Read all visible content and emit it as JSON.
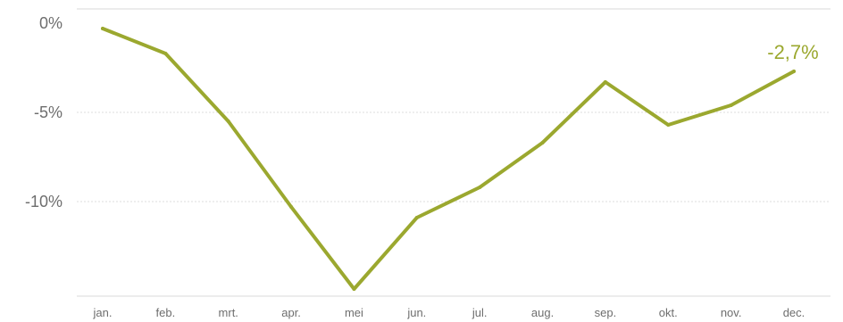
{
  "chart_data": {
    "type": "line",
    "categories": [
      "jan.",
      "feb.",
      "mrt.",
      "apr.",
      "mei",
      "jun.",
      "jul.",
      "aug.",
      "sep.",
      "okt.",
      "nov.",
      "dec."
    ],
    "series": [
      {
        "values": [
          -0.3,
          -1.7,
          -5.5,
          -10.3,
          -14.9,
          -10.9,
          -9.2,
          -6.7,
          -3.3,
          -5.7,
          -4.6,
          -2.7
        ]
      }
    ],
    "y_ticks": [
      {
        "value": 0,
        "label": "0%"
      },
      {
        "value": -5,
        "label": "-5%"
      },
      {
        "value": -10,
        "label": "-10%"
      }
    ],
    "ylim": [
      -15.3,
      0.8
    ],
    "end_label": "-2,7%",
    "line_color": "#9ba82f",
    "label_color": "#9ba82f",
    "grid": true,
    "title": "",
    "xlabel": "",
    "ylabel": ""
  }
}
